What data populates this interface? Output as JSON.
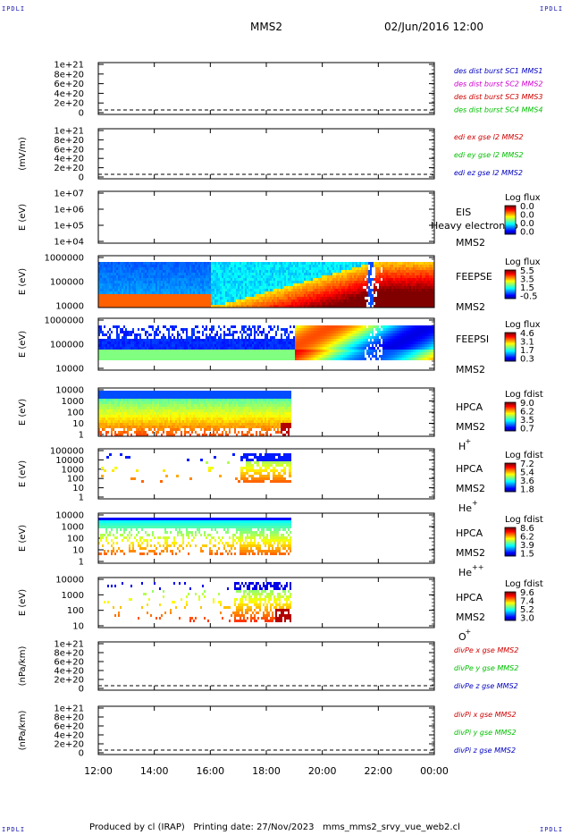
{
  "corners": {
    "tl": "IPDLI",
    "tr": "IPDLI",
    "bl": "IPDLI",
    "br": "IPDLI"
  },
  "header": {
    "title": "MMS2",
    "datetime": "02/Jun/2016 12:00"
  },
  "footer": {
    "text": "Produced by cl (IRAP)   Printing date: 27/Nov/2023   mms_mms2_srvy_vue_web2.cl"
  },
  "time_axis": {
    "ticks": [
      "12:00",
      "14:00",
      "16:00",
      "18:00",
      "20:00",
      "22:00",
      "00:00"
    ]
  },
  "colors": {
    "corner": "#1a1ab0",
    "red": "#d00000",
    "magenta": "#d000d0",
    "green": "#00c000",
    "blue": "#0000c0"
  },
  "panels": [
    {
      "id": "p1",
      "ylabel": "",
      "yticks": [
        "1e+21",
        "8e+20",
        "6e+20",
        "4e+20",
        "2e+20",
        "0"
      ],
      "legend": [
        {
          "text": "des dist burst SC1 MMS1",
          "color": "#0000c0"
        },
        {
          "text": "des dist burst SC2 MMS2",
          "color": "#d000d0"
        },
        {
          "text": "des dist burst SC3 MMS3",
          "color": "#d00000"
        },
        {
          "text": "des dist burst SC4 MMS4",
          "color": "#00c000"
        }
      ]
    },
    {
      "id": "p2",
      "ylabel": "(mV/m)",
      "yticks": [
        "1e+21",
        "8e+20",
        "6e+20",
        "4e+20",
        "2e+20",
        "0"
      ],
      "legend": [
        {
          "text": "edi ex gse l2 MMS2",
          "color": "#d00000"
        },
        {
          "text": "edi ey gse l2 MMS2",
          "color": "#00c000"
        },
        {
          "text": "edi ez gse l2 MMS2",
          "color": "#0000c0"
        }
      ]
    },
    {
      "id": "p3",
      "ylabel": "E (eV)",
      "yticks": [
        "1e+07",
        "1e+06",
        "1e+05",
        "1e+04"
      ],
      "inst": "EIS",
      "inst_overlap": "Heavy electron to",
      "sc": "MMS2",
      "cb_title": "Log flux",
      "cb_ticks": [
        "0.0",
        "0.0",
        "0.0",
        "0.0"
      ]
    },
    {
      "id": "p4",
      "ylabel": "E (eV)",
      "yticks": [
        "1000000",
        "100000",
        "10000"
      ],
      "inst": "FEEPSE",
      "sc": "MMS2",
      "cb_title": "Log flux",
      "cb_ticks": [
        "5.5",
        "3.5",
        "1.5",
        "-0.5"
      ]
    },
    {
      "id": "p5",
      "ylabel": "E (eV)",
      "yticks": [
        "1000000",
        "100000",
        "10000"
      ],
      "inst": "FEEPSI",
      "sc": "MMS2",
      "cb_title": "Log flux",
      "cb_ticks": [
        "4.6",
        "3.1",
        "1.7",
        "0.3"
      ]
    },
    {
      "id": "p6",
      "ylabel": "E (eV)",
      "yticks": [
        "10000",
        "1000",
        "100",
        "10",
        "1"
      ],
      "inst": "HPCA",
      "sc": "MMS2",
      "species": "H",
      "species_sup": "+",
      "cb_title": "Log fdist",
      "cb_ticks": [
        "9.0",
        "6.2",
        "3.5",
        "0.7"
      ]
    },
    {
      "id": "p7",
      "ylabel": "E (eV)",
      "yticks": [
        "100000",
        "10000",
        "1000",
        "100",
        "10",
        "1"
      ],
      "inst": "HPCA",
      "sc": "MMS2",
      "species": "He",
      "species_sup": "+",
      "cb_title": "Log fdist",
      "cb_ticks": [
        "7.2",
        "5.4",
        "3.6",
        "1.8"
      ]
    },
    {
      "id": "p8",
      "ylabel": "E (eV)",
      "yticks": [
        "10000",
        "1000",
        "100",
        "10",
        "1"
      ],
      "inst": "HPCA",
      "sc": "MMS2",
      "species": "He",
      "species_sup": "++",
      "cb_title": "Log fdist",
      "cb_ticks": [
        "8.6",
        "6.2",
        "3.9",
        "1.5"
      ]
    },
    {
      "id": "p9",
      "ylabel": "E (eV)",
      "yticks": [
        "10000",
        "1000",
        "100",
        "10"
      ],
      "inst": "HPCA",
      "sc": "MMS2",
      "species": "O",
      "species_sup": "+",
      "cb_title": "Log fdist",
      "cb_ticks": [
        "9.6",
        "7.4",
        "5.2",
        "3.0"
      ]
    },
    {
      "id": "p10",
      "ylabel": "(nPa/km)",
      "yticks": [
        "1e+21",
        "8e+20",
        "6e+20",
        "4e+20",
        "2e+20",
        "0"
      ],
      "legend": [
        {
          "text": "divPe x gse MMS2",
          "color": "#d00000"
        },
        {
          "text": "divPe y gse MMS2",
          "color": "#00c000"
        },
        {
          "text": "divPe z gse MMS2",
          "color": "#0000c0"
        }
      ]
    },
    {
      "id": "p11",
      "ylabel": "(nPa/km)",
      "yticks": [
        "1e+21",
        "8e+20",
        "6e+20",
        "4e+20",
        "2e+20",
        "0"
      ],
      "legend": [
        {
          "text": "divPi x gse MMS2",
          "color": "#d00000"
        },
        {
          "text": "divPi y gse MMS2",
          "color": "#00c000"
        },
        {
          "text": "divPi z gse MMS2",
          "color": "#0000c0"
        }
      ]
    }
  ],
  "chart_data": {
    "type": "heatmap",
    "title": "MMS2",
    "xlabel": "",
    "x_ticks": [
      "12:00",
      "14:00",
      "16:00",
      "18:00",
      "20:00",
      "22:00",
      "00:00"
    ],
    "panels": [
      {
        "name": "FEEPSE",
        "ylabel": "E (eV)",
        "ylim": [
          10000,
          1000000
        ],
        "log": true,
        "colorbar": [
          -0.5,
          5.5
        ]
      },
      {
        "name": "FEEPSI",
        "ylabel": "E (eV)",
        "ylim": [
          10000,
          1000000
        ],
        "log": true,
        "colorbar": [
          0.3,
          4.6
        ]
      },
      {
        "name": "HPCA H+",
        "ylabel": "E (eV)",
        "ylim": [
          1,
          10000
        ],
        "log": true,
        "colorbar": [
          0.7,
          9.0
        ],
        "data_end": "18:50"
      },
      {
        "name": "HPCA He+",
        "ylabel": "E (eV)",
        "ylim": [
          1,
          100000
        ],
        "log": true,
        "colorbar": [
          1.8,
          7.2
        ],
        "data_end": "18:50"
      },
      {
        "name": "HPCA He++",
        "ylabel": "E (eV)",
        "ylim": [
          1,
          10000
        ],
        "log": true,
        "colorbar": [
          1.5,
          8.6
        ],
        "data_end": "18:50"
      },
      {
        "name": "HPCA O+",
        "ylabel": "E (eV)",
        "ylim": [
          10,
          10000
        ],
        "log": true,
        "colorbar": [
          3.0,
          9.6
        ],
        "data_end": "18:50"
      }
    ]
  }
}
